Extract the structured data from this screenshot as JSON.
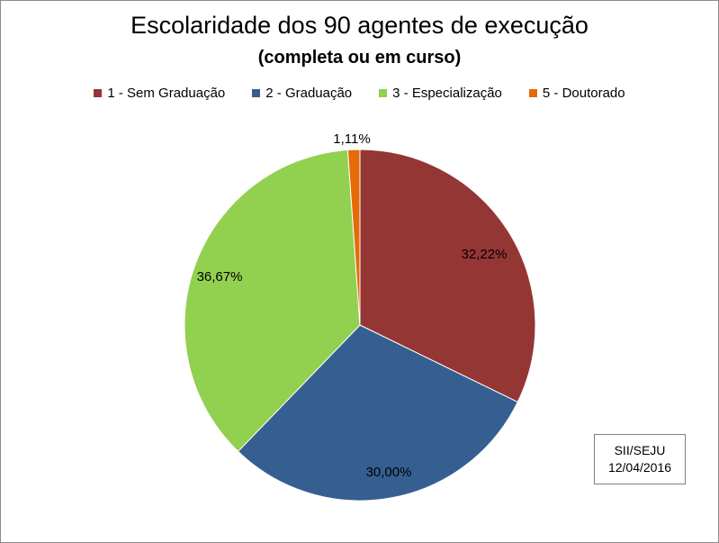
{
  "chart_data": {
    "type": "pie",
    "title": "Escolaridade dos 90 agentes de execução",
    "subtitle": "(completa ou em curso)",
    "legend_position": "top",
    "start": "top",
    "direction": "clockwise",
    "categories": [
      "1 - Sem Graduação",
      "2 - Graduação",
      "3 - Especialização",
      "5 - Doutorado"
    ],
    "values": [
      32.22,
      30.0,
      36.67,
      1.11
    ],
    "data_labels": [
      "32,22%",
      "30,00%",
      "36,67%",
      "1,11%"
    ],
    "colors": [
      "#943634",
      "#365f91",
      "#92d050",
      "#e36c09"
    ]
  },
  "source_note": {
    "line1": "SII/SEJU",
    "line2": "12/04/2016"
  }
}
